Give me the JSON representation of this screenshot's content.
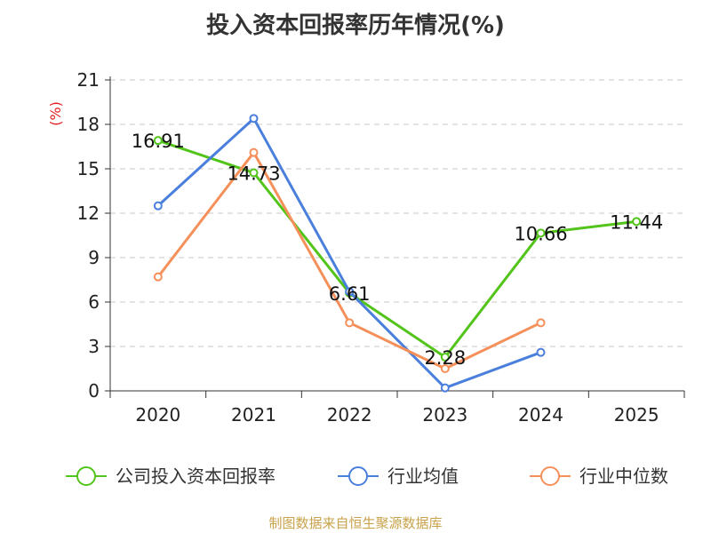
{
  "title": "投入资本回报率历年情况(%)",
  "source": "制图数据来自恒生聚源数据库",
  "chart_data": {
    "type": "line",
    "title": "投入资本回报率历年情况(%)",
    "ylabel": "(%)",
    "xlabel": "",
    "ylim": [
      0,
      21
    ],
    "yticks": [
      0,
      3,
      6,
      9,
      12,
      15,
      18,
      21
    ],
    "grid": true,
    "legend_position": "bottom",
    "categories": [
      "2020",
      "2021",
      "2022",
      "2023",
      "2024",
      "2025"
    ],
    "series": [
      {
        "name": "公司投入资本回报率",
        "color": "#52c41a",
        "values": [
          16.91,
          14.73,
          6.61,
          2.28,
          10.66,
          11.44
        ],
        "labels": [
          "16.91",
          "14.73",
          "6.61",
          "2.28",
          "10.66",
          "11.44"
        ]
      },
      {
        "name": "行业均值",
        "color": "#4a7fdc",
        "values": [
          12.5,
          18.4,
          6.7,
          0.2,
          2.6,
          null
        ],
        "labels": []
      },
      {
        "name": "行业中位数",
        "color": "#f5905a",
        "values": [
          7.7,
          16.1,
          4.6,
          1.5,
          4.6,
          null
        ],
        "labels": []
      }
    ]
  }
}
